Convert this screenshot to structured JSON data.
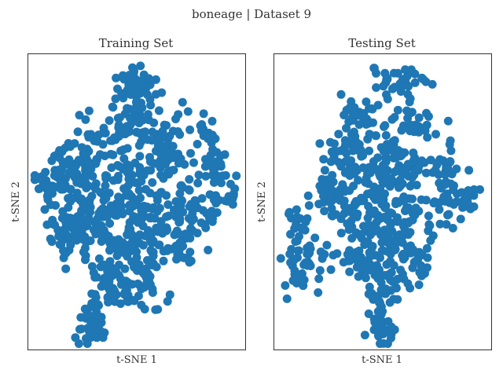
{
  "figure": {
    "title": "boneage | Dataset 9",
    "point_color": "#1f77b4"
  },
  "chart_data": [
    {
      "type": "scatter",
      "title": "Training Set",
      "xlabel": "t-SNE 1",
      "ylabel": "t-SNE 2",
      "xlim": [
        0,
        100
      ],
      "ylim": [
        0,
        100
      ],
      "grid": false,
      "ticks": false,
      "clusters": [
        {
          "x": 50,
          "y": 90,
          "sx": 5,
          "sy": 3,
          "n": 46
        },
        {
          "x": 50,
          "y": 80,
          "sx": 4,
          "sy": 4,
          "n": 30
        },
        {
          "x": 35,
          "y": 74,
          "sx": 8,
          "sy": 4,
          "n": 36
        },
        {
          "x": 60,
          "y": 74,
          "sx": 6,
          "sy": 4,
          "n": 30
        },
        {
          "x": 20,
          "y": 64,
          "sx": 6,
          "sy": 3,
          "n": 30
        },
        {
          "x": 12,
          "y": 57,
          "sx": 6,
          "sy": 4,
          "n": 44
        },
        {
          "x": 36,
          "y": 60,
          "sx": 10,
          "sy": 6,
          "n": 70
        },
        {
          "x": 62,
          "y": 63,
          "sx": 7,
          "sy": 5,
          "n": 50
        },
        {
          "x": 26,
          "y": 46,
          "sx": 8,
          "sy": 6,
          "n": 56
        },
        {
          "x": 50,
          "y": 49,
          "sx": 11,
          "sy": 7,
          "n": 90
        },
        {
          "x": 20,
          "y": 40,
          "sx": 6,
          "sy": 4,
          "n": 40
        },
        {
          "x": 72,
          "y": 43,
          "sx": 4,
          "sy": 8,
          "n": 40
        },
        {
          "x": 39,
          "y": 36,
          "sx": 8,
          "sy": 6,
          "n": 56
        },
        {
          "x": 60,
          "y": 34,
          "sx": 8,
          "sy": 6,
          "n": 50
        },
        {
          "x": 39,
          "y": 22,
          "sx": 5,
          "sy": 4,
          "n": 30
        },
        {
          "x": 52,
          "y": 20,
          "sx": 6,
          "sy": 4,
          "n": 30
        },
        {
          "x": 30,
          "y": 13,
          "sx": 4,
          "sy": 4,
          "n": 26
        },
        {
          "x": 29,
          "y": 5,
          "sx": 3,
          "sy": 3,
          "n": 20
        },
        {
          "x": 80,
          "y": 73,
          "sx": 3,
          "sy": 2,
          "n": 14
        },
        {
          "x": 86,
          "y": 65,
          "sx": 3,
          "sy": 4,
          "n": 20
        },
        {
          "x": 87,
          "y": 53,
          "sx": 3,
          "sy": 4,
          "n": 18
        },
        {
          "x": 93,
          "y": 52,
          "sx": 2,
          "sy": 3,
          "n": 12
        },
        {
          "x": 82,
          "y": 46,
          "sx": 3,
          "sy": 3,
          "n": 12
        }
      ]
    },
    {
      "type": "scatter",
      "title": "Testing Set",
      "xlabel": "t-SNE 1",
      "ylabel": "t-SNE 2",
      "xlim": [
        0,
        100
      ],
      "ylim": [
        0,
        100
      ],
      "grid": false,
      "ticks": false,
      "clusters": [
        {
          "x": 57,
          "y": 90,
          "sx": 7,
          "sy": 3,
          "n": 36
        },
        {
          "x": 42,
          "y": 78,
          "sx": 6,
          "sy": 3,
          "n": 30
        },
        {
          "x": 65,
          "y": 76,
          "sx": 6,
          "sy": 3,
          "n": 26
        },
        {
          "x": 35,
          "y": 68,
          "sx": 6,
          "sy": 4,
          "n": 40
        },
        {
          "x": 55,
          "y": 68,
          "sx": 5,
          "sy": 4,
          "n": 30
        },
        {
          "x": 30,
          "y": 54,
          "sx": 5,
          "sy": 6,
          "n": 40
        },
        {
          "x": 48,
          "y": 55,
          "sx": 8,
          "sy": 5,
          "n": 50
        },
        {
          "x": 62,
          "y": 58,
          "sx": 5,
          "sy": 6,
          "n": 36
        },
        {
          "x": 20,
          "y": 53,
          "sx": 4,
          "sy": 3,
          "n": 14
        },
        {
          "x": 78,
          "y": 63,
          "sx": 4,
          "sy": 3,
          "n": 24
        },
        {
          "x": 80,
          "y": 52,
          "sx": 5,
          "sy": 4,
          "n": 30
        },
        {
          "x": 90,
          "y": 51,
          "sx": 3,
          "sy": 3,
          "n": 18
        },
        {
          "x": 42,
          "y": 43,
          "sx": 7,
          "sy": 5,
          "n": 46
        },
        {
          "x": 60,
          "y": 43,
          "sx": 7,
          "sy": 5,
          "n": 46
        },
        {
          "x": 38,
          "y": 30,
          "sx": 5,
          "sy": 4,
          "n": 30
        },
        {
          "x": 52,
          "y": 29,
          "sx": 7,
          "sy": 5,
          "n": 44
        },
        {
          "x": 66,
          "y": 28,
          "sx": 3,
          "sy": 4,
          "n": 20
        },
        {
          "x": 50,
          "y": 18,
          "sx": 4,
          "sy": 4,
          "n": 28
        },
        {
          "x": 50,
          "y": 8,
          "sx": 3,
          "sy": 4,
          "n": 24
        },
        {
          "x": 10,
          "y": 40,
          "sx": 3,
          "sy": 4,
          "n": 18
        },
        {
          "x": 12,
          "y": 27,
          "sx": 4,
          "sy": 5,
          "n": 30
        },
        {
          "x": 18,
          "y": 33,
          "sx": 5,
          "sy": 3,
          "n": 16
        }
      ]
    }
  ]
}
